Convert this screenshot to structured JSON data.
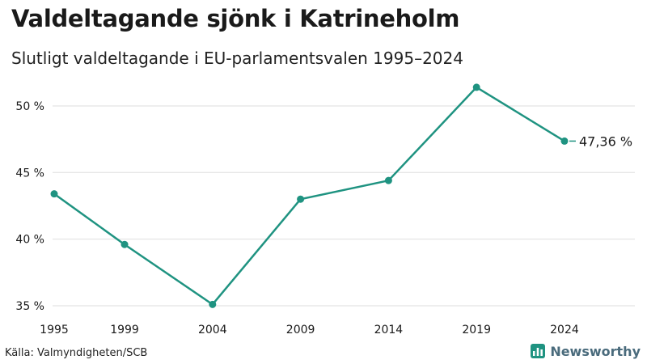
{
  "title": "Valdeltagande sjönk i Katrineholm",
  "subtitle": "Slutligt valdeltagande i EU-parlamentsvalen 1995–2024",
  "source": "Källa: Valmyndigheten/SCB",
  "brand": "Newsworthy",
  "colors": {
    "line": "#1f9381",
    "grid": "#dedede",
    "text": "#1a1a1a",
    "brand": "#4a6b7c"
  },
  "chart_data": {
    "type": "line",
    "title": "Valdeltagande sjönk i Katrineholm",
    "subtitle": "Slutligt valdeltagande i EU-parlamentsvalen 1995–2024",
    "xlabel": "",
    "ylabel": "",
    "x": [
      1995,
      1999,
      2004,
      2009,
      2014,
      2019,
      2024
    ],
    "series": [
      {
        "name": "Valdeltagande",
        "values": [
          43.4,
          39.6,
          35.1,
          43.0,
          44.4,
          51.4,
          47.36
        ]
      }
    ],
    "ylim": [
      35,
      52
    ],
    "xlim": [
      1995,
      2028
    ],
    "yticks": [
      35,
      40,
      45,
      50
    ],
    "ytick_labels": [
      "35 %",
      "40 %",
      "45 %",
      "50 %"
    ],
    "xtick_labels": [
      "1995",
      "1999",
      "2004",
      "2009",
      "2014",
      "2019",
      "2024"
    ],
    "end_label": "47,36 %",
    "grid": true,
    "legend": "none"
  }
}
